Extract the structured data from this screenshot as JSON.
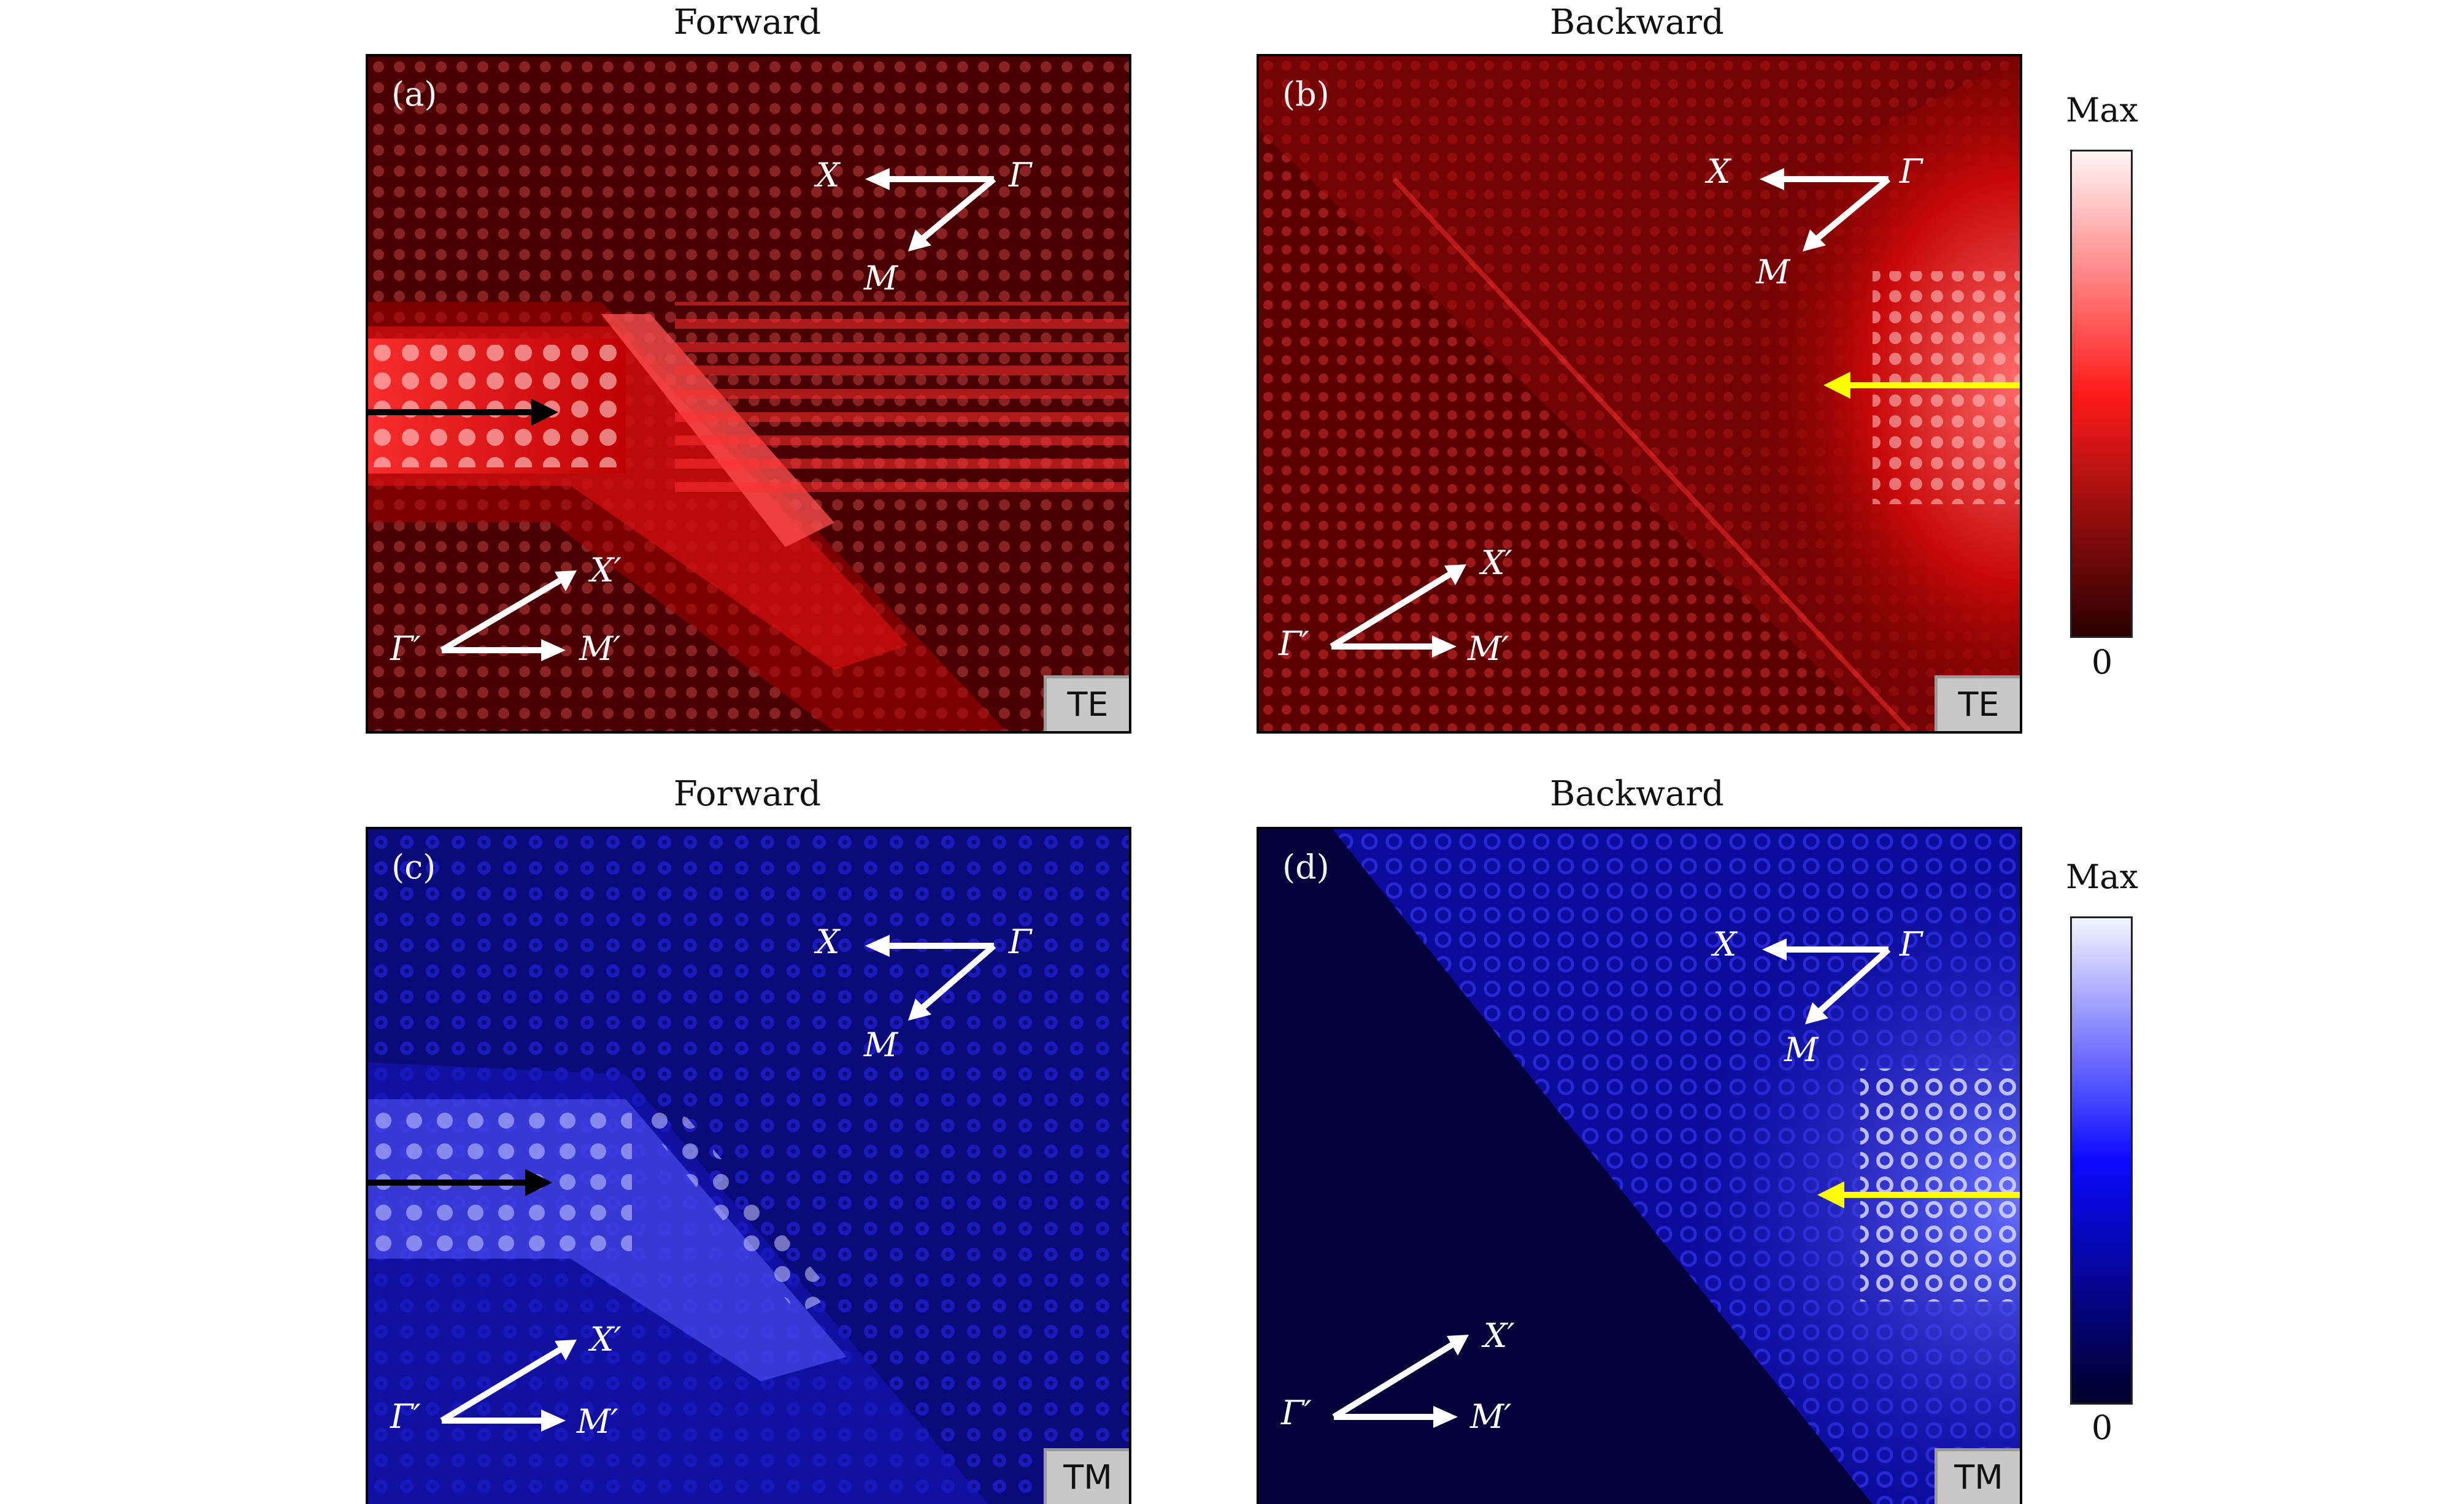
{
  "column_titles": {
    "forward": "Forward",
    "backward": "Backward"
  },
  "panels": {
    "a": {
      "label": "(a)",
      "mode": "TE",
      "direction": "Forward"
    },
    "b": {
      "label": "(b)",
      "mode": "TE",
      "direction": "Backward"
    },
    "c": {
      "label": "(c)",
      "mode": "TM",
      "direction": "Forward"
    },
    "d": {
      "label": "(d)",
      "mode": "TM",
      "direction": "Backward"
    }
  },
  "symbols": {
    "gamma": "Γ",
    "x": "X",
    "m": "M",
    "gamma_prime": "Γ′",
    "x_prime": "X′",
    "m_prime": "M′"
  },
  "colorbars": {
    "te": {
      "max_label": "Max",
      "min_label": "0",
      "top_color": "#fff5f5",
      "mid_color": "#ff1a1a",
      "bottom_color": "#2a0000"
    },
    "tm": {
      "max_label": "Max",
      "min_label": "0",
      "top_color": "#f4f4ff",
      "mid_color": "#0a0aff",
      "bottom_color": "#00002a"
    }
  },
  "colors": {
    "te_background": "#4a0000",
    "te_bright": "#ff4040",
    "tm_background": "#0a0a7a",
    "tm_dark": "#04043a",
    "tm_bright": "#9aa0ff",
    "forward_arrow": "#000000",
    "backward_arrow": "#ffff00",
    "symbol_arrow": "#ffffff"
  }
}
